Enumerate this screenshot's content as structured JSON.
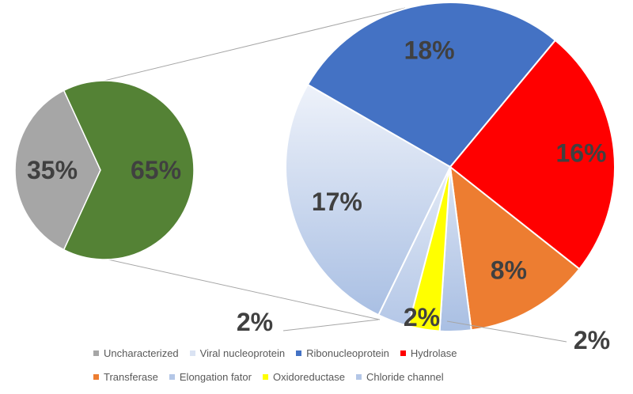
{
  "chart_data": {
    "type": "pie",
    "subtype": "pie-of-pie",
    "primary": {
      "slices": [
        {
          "label": "35%",
          "value": 35,
          "color": "#a6a6a6"
        },
        {
          "label": "65%",
          "value": 65,
          "color": "#548235"
        }
      ]
    },
    "secondary": {
      "slices": [
        {
          "name": "Ribonucleoprotein",
          "label": "18%",
          "value": 18,
          "color": "#4472c4"
        },
        {
          "name": "Hydrolase",
          "label": "16%",
          "value": 16,
          "color": "#ff0000"
        },
        {
          "name": "Transferase",
          "label": "8%",
          "value": 8,
          "color": "#ed7d31"
        },
        {
          "name": "Chloride channel",
          "label": "2%",
          "value": 2,
          "color": "#b4c7e7"
        },
        {
          "name": "Oxidoreductase",
          "label": "2%",
          "value": 2,
          "color": "#ffff00"
        },
        {
          "name": "Elongation fator",
          "label": "2%",
          "value": 2,
          "color": "#c5d5ee"
        },
        {
          "name": "Viral nucleoprotein",
          "label": "17%",
          "value": 17,
          "color": "#c9d7ef"
        }
      ]
    },
    "legend": {
      "placement": "bottom",
      "rows": [
        [
          {
            "label": "Uncharacterized",
            "color": "#a6a6a6"
          },
          {
            "label": "Viral nucleoprotein",
            "color": "#dae3f3"
          },
          {
            "label": "Ribonucleoprotein",
            "color": "#4472c4"
          },
          {
            "label": "Hydrolase",
            "color": "#ff0000"
          }
        ],
        [
          {
            "label": "Transferase",
            "color": "#ed7d31"
          },
          {
            "label": "Elongation fator",
            "color": "#b4c7e7"
          },
          {
            "label": "Oxidoreductase",
            "color": "#ffff00"
          },
          {
            "label": "Chloride channel",
            "color": "#b4c7e7"
          }
        ]
      ]
    }
  }
}
